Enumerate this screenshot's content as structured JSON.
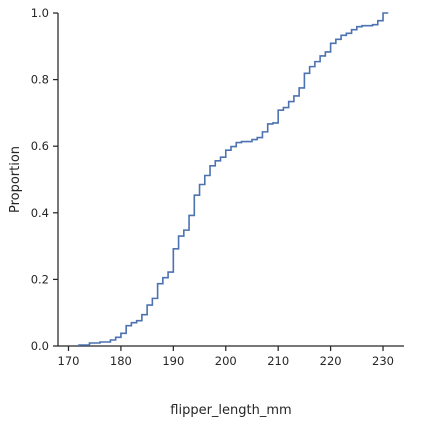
{
  "chart_data": {
    "type": "line",
    "subtype": "ecdf-step",
    "title": "",
    "xlabel": "flipper_length_mm",
    "ylabel": "Proportion",
    "xlim": [
      168,
      234
    ],
    "ylim": [
      0,
      1
    ],
    "xticks": [
      170,
      180,
      190,
      200,
      210,
      220,
      230
    ],
    "yticks": [
      0.0,
      0.2,
      0.4,
      0.6,
      0.8,
      1.0
    ],
    "xtick_labels": [
      "170",
      "180",
      "190",
      "200",
      "210",
      "220",
      "230"
    ],
    "ytick_labels": [
      "0.0",
      "0.2",
      "0.4",
      "0.6",
      "0.8",
      "1.0"
    ],
    "grid": false,
    "line_color": "#4c72b0",
    "series": [
      {
        "x": [
          172,
          174,
          176,
          178,
          179,
          180,
          181,
          182,
          183,
          184,
          185,
          186,
          187,
          188,
          189,
          190,
          191,
          192,
          193,
          194,
          195,
          196,
          197,
          198,
          199,
          200,
          201,
          202,
          203,
          205,
          206,
          207,
          208,
          209,
          210,
          211,
          212,
          213,
          214,
          215,
          216,
          217,
          218,
          219,
          220,
          221,
          222,
          223,
          224,
          225,
          226,
          228,
          229,
          230,
          231
        ],
        "y": [
          0.003,
          0.009,
          0.012,
          0.018,
          0.026,
          0.038,
          0.061,
          0.07,
          0.076,
          0.094,
          0.123,
          0.143,
          0.187,
          0.205,
          0.222,
          0.292,
          0.33,
          0.348,
          0.392,
          0.453,
          0.485,
          0.512,
          0.541,
          0.556,
          0.567,
          0.588,
          0.599,
          0.611,
          0.614,
          0.62,
          0.626,
          0.643,
          0.667,
          0.67,
          0.708,
          0.716,
          0.734,
          0.751,
          0.775,
          0.819,
          0.839,
          0.854,
          0.871,
          0.883,
          0.909,
          0.921,
          0.933,
          0.939,
          0.95,
          0.959,
          0.962,
          0.965,
          0.977,
          1.0,
          1.0
        ]
      }
    ]
  }
}
